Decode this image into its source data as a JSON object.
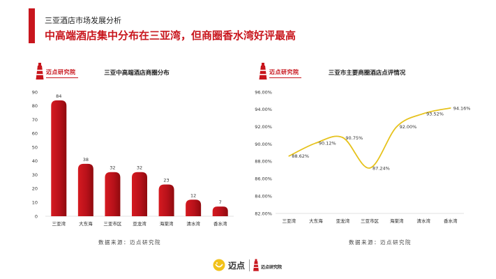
{
  "header": {
    "section_title": "三亚酒店市场发展分析",
    "headline": "中高端酒店集中分布在三亚湾，但商圈香水湾好评最高"
  },
  "colors": {
    "accent": "#c8161d",
    "bar_light": "#d51a20",
    "bar_dark": "#8f0a0e",
    "line": "#e6c21c",
    "footer_icon": "#f2c21b"
  },
  "logos": {
    "chart_logo_text": "迈点研究院",
    "chart_logo_icon": "lighthouse-icon",
    "footer_brand": "迈点",
    "footer_brand_icon": "smile-icon",
    "footer_institute": "迈点研究院"
  },
  "chart_data": [
    {
      "type": "bar",
      "title": "三亚中高端酒店商圈分布",
      "categories": [
        "三亚湾",
        "大东海",
        "三亚市区",
        "亚龙湾",
        "海棠湾",
        "清水湾",
        "香水湾"
      ],
      "values": [
        84,
        38,
        32,
        32,
        23,
        12,
        7
      ],
      "ylim": [
        0,
        90
      ],
      "yticks": [
        0,
        10,
        20,
        30,
        40,
        50,
        60,
        70,
        80,
        90
      ],
      "grid": false,
      "source": "数据来源：迈点研究院"
    },
    {
      "type": "line",
      "title": "三亚市主要商圈酒店点评情况",
      "categories": [
        "三亚湾",
        "大东海",
        "亚龙湾",
        "三亚市区",
        "海棠湾",
        "清水湾",
        "香水湾"
      ],
      "values": [
        88.62,
        90.12,
        90.75,
        87.24,
        92.0,
        93.52,
        94.16
      ],
      "value_labels": [
        "88.62%",
        "90.12%",
        "90.75%",
        "87.24%",
        "92.00%",
        "93.52%",
        "94.16%"
      ],
      "ylim": [
        82,
        96
      ],
      "yticks": [
        82,
        84,
        86,
        88,
        90,
        92,
        94,
        96
      ],
      "ytick_labels": [
        "82.00%",
        "84.00%",
        "86.00%",
        "88.00%",
        "90.00%",
        "92.00%",
        "94.00%",
        "96.00%"
      ],
      "grid": false,
      "smooth": true,
      "source": "数据来源：迈点研究院"
    }
  ]
}
